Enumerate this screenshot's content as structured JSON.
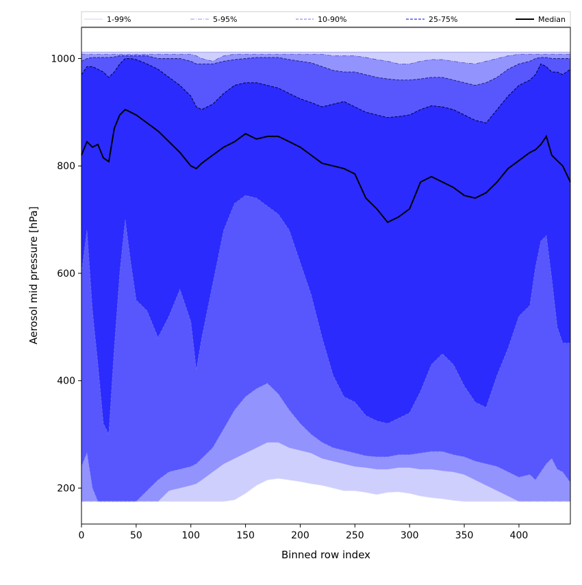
{
  "chart_data": {
    "type": "area",
    "title": "",
    "xlabel": "Binned row index",
    "ylabel": "Aerosol mid pressure [hPa]",
    "xlim": [
      0,
      447
    ],
    "ylim": [
      133,
      1058
    ],
    "x_ticks": [
      0,
      50,
      100,
      150,
      200,
      250,
      300,
      350,
      400
    ],
    "y_ticks": [
      200,
      400,
      600,
      800,
      1000
    ],
    "legend_position": "top",
    "legend": [
      {
        "label": "1-99%",
        "style": "solid-thin"
      },
      {
        "label": "5-95%",
        "style": "dashdot-thin"
      },
      {
        "label": "10-90%",
        "style": "dashed"
      },
      {
        "label": "25-75%",
        "style": "dashed-dark"
      },
      {
        "label": "Median",
        "style": "solid-black"
      }
    ],
    "colors": {
      "band_1_99": "#cfcffd",
      "band_5_95": "#9393fd",
      "band_10_90": "#5757fd",
      "band_25_75": "#2b2bfd",
      "median": "#000000"
    },
    "x": [
      0,
      5,
      10,
      15,
      20,
      25,
      30,
      35,
      40,
      45,
      50,
      60,
      70,
      80,
      90,
      100,
      105,
      110,
      120,
      130,
      140,
      150,
      160,
      170,
      180,
      190,
      200,
      210,
      220,
      230,
      240,
      250,
      260,
      270,
      280,
      290,
      300,
      310,
      320,
      330,
      340,
      350,
      360,
      370,
      380,
      390,
      400,
      410,
      415,
      420,
      425,
      430,
      435,
      440,
      447
    ],
    "series": [
      {
        "name": "1%",
        "values": [
          175,
          175,
          175,
          175,
          175,
          175,
          175,
          175,
          175,
          175,
          175,
          175,
          175,
          175,
          175,
          175,
          175,
          175,
          175,
          175,
          178,
          190,
          205,
          215,
          218,
          215,
          212,
          208,
          205,
          200,
          195,
          195,
          192,
          188,
          192,
          193,
          190,
          185,
          182,
          180,
          177,
          175,
          175,
          175,
          175,
          175,
          175,
          175,
          175,
          175,
          175,
          175,
          175,
          175,
          175
        ]
      },
      {
        "name": "5%",
        "values": [
          175,
          175,
          175,
          175,
          175,
          175,
          175,
          175,
          175,
          175,
          175,
          175,
          175,
          195,
          200,
          205,
          208,
          215,
          230,
          245,
          255,
          265,
          275,
          285,
          285,
          275,
          270,
          265,
          255,
          250,
          245,
          240,
          238,
          235,
          235,
          238,
          238,
          235,
          235,
          232,
          230,
          225,
          215,
          205,
          195,
          185,
          175,
          175,
          175,
          175,
          175,
          175,
          175,
          175,
          175
        ]
      },
      {
        "name": "10%",
        "values": [
          240,
          265,
          200,
          175,
          175,
          175,
          175,
          175,
          175,
          175,
          175,
          195,
          215,
          230,
          235,
          240,
          245,
          255,
          275,
          310,
          345,
          370,
          385,
          395,
          375,
          345,
          320,
          300,
          285,
          275,
          270,
          265,
          260,
          258,
          258,
          262,
          262,
          265,
          268,
          268,
          262,
          258,
          250,
          245,
          240,
          230,
          220,
          225,
          215,
          230,
          245,
          255,
          235,
          230,
          210
        ]
      },
      {
        "name": "25%",
        "values": [
          600,
          680,
          530,
          430,
          320,
          300,
          460,
          600,
          700,
          620,
          550,
          530,
          480,
          520,
          570,
          510,
          420,
          480,
          580,
          680,
          730,
          745,
          740,
          725,
          710,
          680,
          620,
          560,
          480,
          410,
          370,
          360,
          335,
          325,
          320,
          330,
          340,
          380,
          430,
          450,
          430,
          390,
          360,
          350,
          410,
          460,
          520,
          540,
          610,
          660,
          670,
          590,
          500,
          470,
          470
        ]
      },
      {
        "name": "Median",
        "values": [
          820,
          845,
          835,
          840,
          815,
          808,
          870,
          895,
          905,
          900,
          895,
          880,
          865,
          845,
          825,
          800,
          795,
          805,
          820,
          835,
          845,
          860,
          850,
          855,
          855,
          845,
          835,
          820,
          805,
          800,
          795,
          785,
          740,
          720,
          695,
          705,
          720,
          770,
          780,
          770,
          760,
          745,
          740,
          750,
          770,
          795,
          810,
          825,
          830,
          840,
          855,
          820,
          810,
          800,
          770
        ]
      },
      {
        "name": "75%",
        "values": [
          970,
          985,
          985,
          980,
          975,
          965,
          975,
          990,
          1000,
          1000,
          998,
          990,
          980,
          965,
          950,
          930,
          910,
          905,
          915,
          935,
          950,
          955,
          955,
          950,
          945,
          935,
          925,
          918,
          910,
          915,
          920,
          910,
          900,
          895,
          890,
          892,
          895,
          905,
          912,
          910,
          905,
          895,
          885,
          880,
          905,
          930,
          950,
          960,
          970,
          990,
          985,
          975,
          975,
          970,
          980
        ]
      },
      {
        "name": "90%",
        "values": [
          995,
          1000,
          1002,
          1002,
          1002,
          1002,
          1003,
          1005,
          1005,
          1005,
          1005,
          1005,
          1000,
          1000,
          1000,
          995,
          990,
          990,
          990,
          995,
          998,
          1000,
          1002,
          1002,
          1002,
          998,
          995,
          992,
          985,
          978,
          975,
          975,
          970,
          965,
          962,
          960,
          960,
          962,
          965,
          965,
          960,
          955,
          950,
          955,
          965,
          980,
          990,
          995,
          1000,
          1002,
          1002,
          1000,
          1000,
          1000,
          1000
        ]
      },
      {
        "name": "95%",
        "values": [
          1008,
          1008,
          1008,
          1008,
          1008,
          1008,
          1008,
          1008,
          1008,
          1008,
          1008,
          1008,
          1008,
          1008,
          1008,
          1008,
          1005,
          1000,
          995,
          1005,
          1008,
          1008,
          1008,
          1008,
          1008,
          1008,
          1008,
          1008,
          1008,
          1005,
          1005,
          1005,
          1002,
          998,
          995,
          990,
          990,
          995,
          998,
          998,
          995,
          992,
          990,
          995,
          1000,
          1005,
          1008,
          1008,
          1008,
          1008,
          1008,
          1008,
          1008,
          1008,
          1008
        ]
      },
      {
        "name": "99%",
        "values": [
          1012,
          1012,
          1012,
          1012,
          1012,
          1012,
          1012,
          1012,
          1012,
          1012,
          1012,
          1012,
          1012,
          1012,
          1012,
          1012,
          1012,
          1012,
          1012,
          1012,
          1012,
          1012,
          1012,
          1012,
          1012,
          1012,
          1012,
          1012,
          1012,
          1012,
          1012,
          1012,
          1012,
          1012,
          1012,
          1012,
          1012,
          1012,
          1012,
          1012,
          1012,
          1012,
          1012,
          1012,
          1012,
          1012,
          1012,
          1012,
          1012,
          1012,
          1012,
          1012,
          1012,
          1012,
          1012
        ]
      }
    ]
  }
}
